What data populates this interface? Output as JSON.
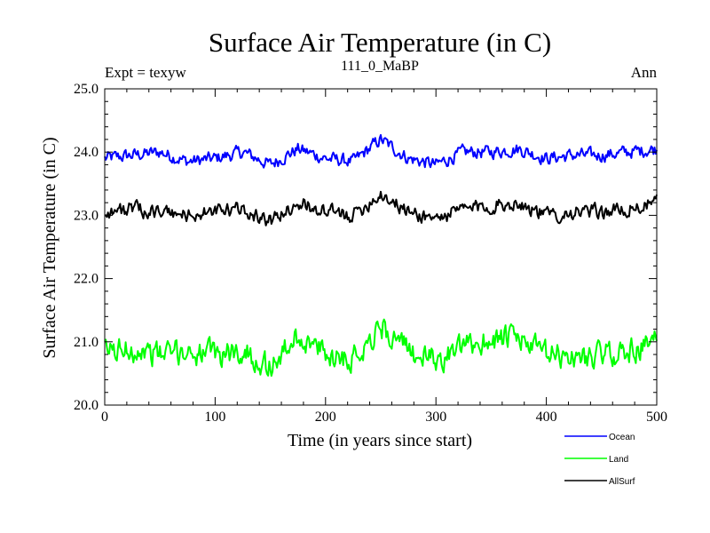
{
  "chart_data": {
    "type": "line",
    "title": "Surface Air Temperature (in C)",
    "subtitle": "111_0_MaBP",
    "left_label": "Expt = texyw",
    "right_label": "Ann",
    "xlabel": "Time (in years since start)",
    "ylabel": "Surface Air Temperature (in C)",
    "xlim": [
      0,
      500
    ],
    "ylim": [
      20.0,
      25.0
    ],
    "xticks": [
      0,
      100,
      200,
      300,
      400,
      500
    ],
    "yticks": [
      "20.0",
      "21.0",
      "22.0",
      "23.0",
      "24.0",
      "25.0"
    ],
    "grid": false,
    "legend_position": "bottom-right",
    "series": [
      {
        "name": "Ocean",
        "color": "#0000ff",
        "x": [
          0,
          25,
          50,
          75,
          100,
          125,
          150,
          175,
          200,
          225,
          250,
          275,
          300,
          325,
          350,
          375,
          400,
          425,
          450,
          475,
          500
        ],
        "values": [
          23.9,
          23.95,
          24.0,
          23.85,
          23.9,
          24.0,
          23.8,
          24.05,
          23.9,
          23.85,
          24.2,
          23.9,
          23.8,
          24.0,
          24.0,
          24.05,
          23.9,
          23.95,
          23.95,
          24.0,
          24.05
        ]
      },
      {
        "name": "Land",
        "color": "#00ff00",
        "x": [
          0,
          25,
          50,
          75,
          100,
          125,
          150,
          175,
          200,
          225,
          250,
          275,
          300,
          325,
          350,
          375,
          400,
          425,
          450,
          475,
          500
        ],
        "values": [
          20.85,
          20.9,
          20.8,
          20.85,
          20.8,
          20.85,
          20.6,
          21.1,
          20.8,
          20.75,
          21.25,
          20.85,
          20.7,
          20.9,
          21.05,
          21.05,
          20.8,
          20.75,
          20.8,
          20.85,
          21.0
        ]
      },
      {
        "name": "AllSurf",
        "color": "#000000",
        "x": [
          0,
          25,
          50,
          75,
          100,
          125,
          150,
          175,
          200,
          225,
          250,
          275,
          300,
          325,
          350,
          375,
          400,
          425,
          450,
          475,
          500
        ],
        "values": [
          23.05,
          23.1,
          23.05,
          23.0,
          23.05,
          23.1,
          22.9,
          23.2,
          23.05,
          23.0,
          23.35,
          23.05,
          22.95,
          23.1,
          23.15,
          23.2,
          23.0,
          23.05,
          23.05,
          23.1,
          23.2
        ]
      }
    ]
  }
}
